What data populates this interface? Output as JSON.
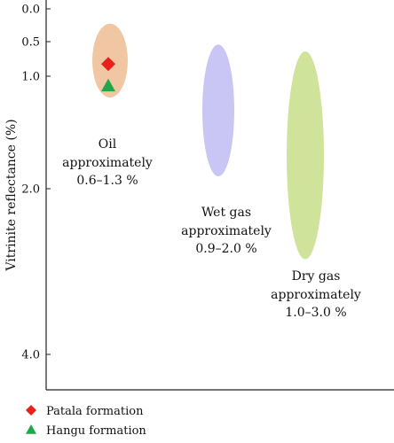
{
  "chart_data": {
    "type": "scatter",
    "ylabel": "Vitrinite reflectance (%)",
    "y_axis_inverted": true,
    "y_tick_labels": [
      "0.0",
      "0.5",
      "1.0",
      "2.0",
      "4.0"
    ],
    "y_tick_values": [
      0.0,
      0.5,
      1.0,
      2.0,
      4.0
    ],
    "zones": [
      {
        "lines": [
          "Oil",
          "approximately",
          "0.6–1.3 %"
        ],
        "range": [
          0.6,
          1.3
        ],
        "color": "#f0c7a2"
      },
      {
        "lines": [
          "Wet gas",
          "approximately",
          "0.9–2.0 %"
        ],
        "range": [
          0.9,
          2.0
        ],
        "color": "#c9c6f5"
      },
      {
        "lines": [
          "Dry gas",
          "approximately",
          "1.0–3.0 %"
        ],
        "range": [
          1.0,
          3.0
        ],
        "color": "#cfe39a"
      }
    ],
    "series": [
      {
        "name": "Patala formation",
        "marker": "diamond",
        "color": "#e8211c",
        "zone": 0,
        "y": 0.9
      },
      {
        "name": "Hangu formation",
        "marker": "triangle",
        "color": "#1fa84a",
        "zone": 0,
        "y": 1.1
      }
    ],
    "legend_position": "bottom-left",
    "grid": false
  }
}
